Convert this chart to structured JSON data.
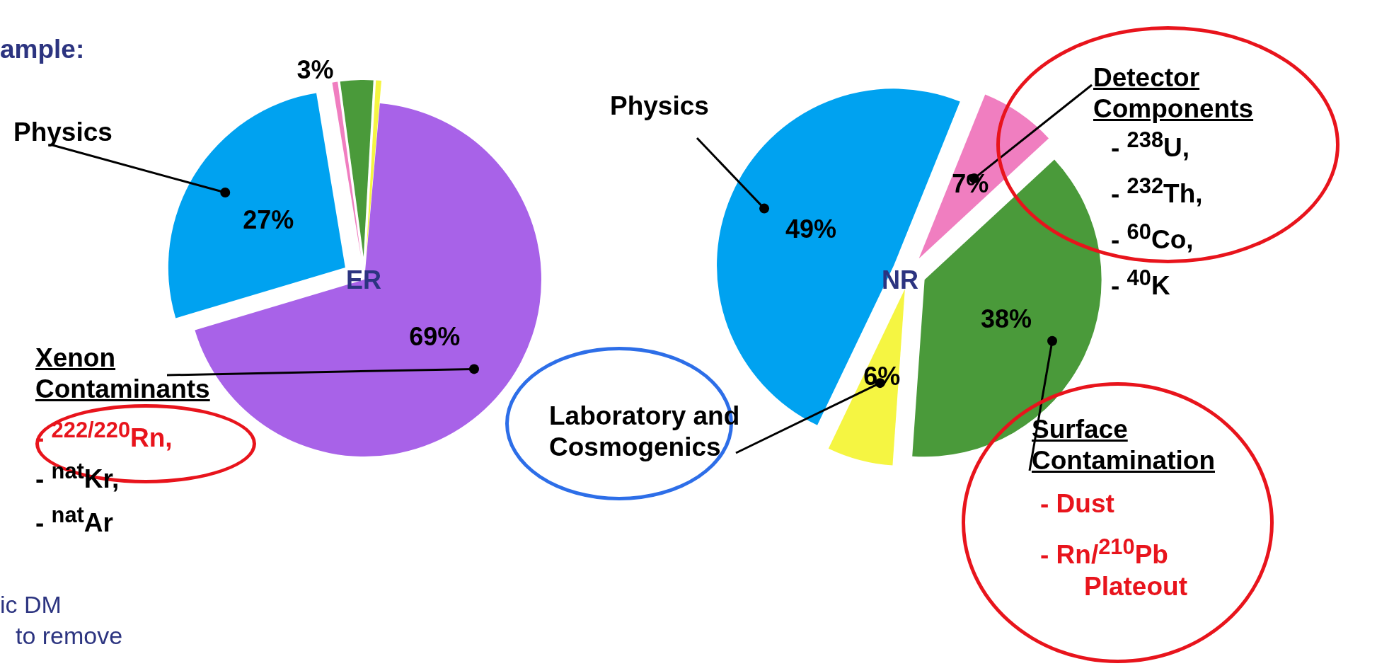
{
  "chart_data": [
    {
      "type": "pie",
      "title": "ER",
      "categories": [
        "Xenon Contaminants",
        "Physics",
        null,
        null,
        null
      ],
      "values": [
        69,
        27,
        0.5,
        3,
        0.5
      ],
      "colors": [
        "#a862e8",
        "#00a2f0",
        "#f07ec0",
        "#4a9a3a",
        "#f5f542"
      ],
      "value_labels": [
        "69%",
        "27%",
        null,
        "3%",
        null
      ],
      "annotations": [
        "ample:",
        "- $^{222/220}$Rn,",
        "- $^{nat}$Kr,",
        "- $^{nat}$Ar",
        "ic DM",
        "to remove"
      ]
    },
    {
      "type": "pie",
      "title": "NR",
      "categories": [
        "Detector Components",
        "Surface Contamination",
        "Laboratory and Cosmogenics",
        "Physics"
      ],
      "values": [
        7,
        38,
        6,
        49
      ],
      "colors": [
        "#f07ec0",
        "#4a9a3a",
        "#f5f542",
        "#00a2f0"
      ],
      "value_labels": [
        "7%",
        "38%",
        "6%",
        "49%"
      ],
      "annotations": [
        "- $^{238}$U,",
        "- $^{232}$Th,",
        "- $^{60}$Co,",
        "- $^{40}$K",
        "- Dust",
        "- Rn/$^{210}$Pb Plateout"
      ]
    }
  ]
}
